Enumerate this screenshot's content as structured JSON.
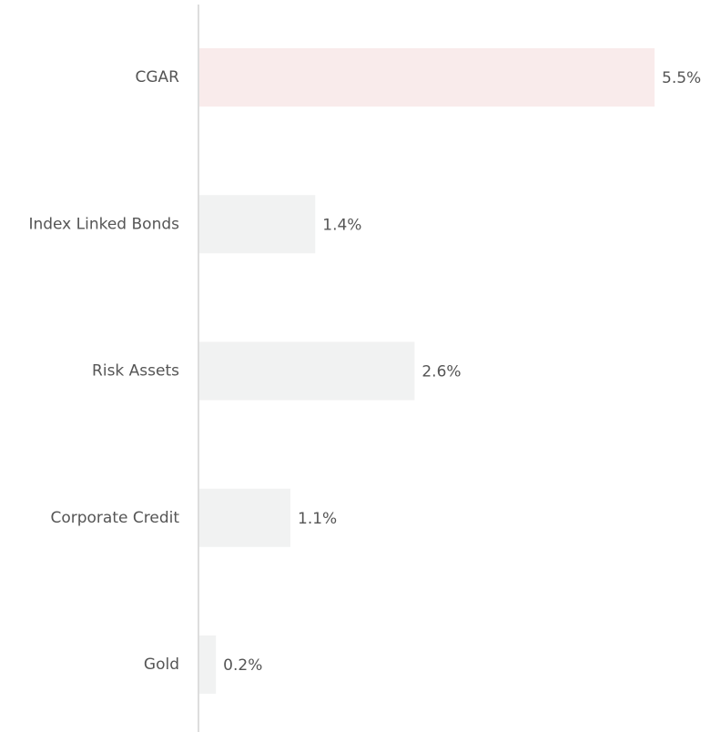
{
  "chart_data": {
    "type": "bar",
    "orientation": "horizontal",
    "categories": [
      "CGAR",
      "Index Linked Bonds",
      "Risk Assets",
      "Corporate Credit",
      "Gold"
    ],
    "values": [
      5.5,
      1.4,
      2.6,
      1.1,
      0.2
    ],
    "value_labels": [
      "5.5%",
      "1.4%",
      "2.6%",
      "1.1%",
      "0.2%"
    ],
    "colors": [
      "#f9ebeb",
      "#f1f2f2",
      "#f1f2f2",
      "#f1f2f2",
      "#f1f2f2"
    ]
  }
}
